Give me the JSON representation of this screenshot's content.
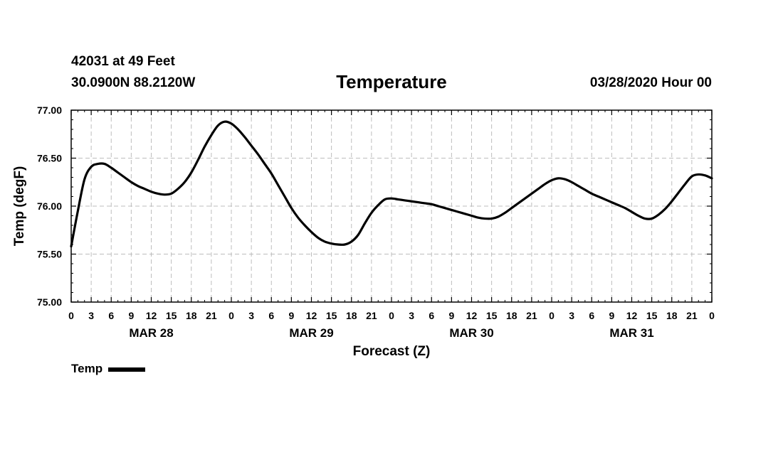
{
  "header": {
    "station": "42031 at 49 Feet",
    "coords": "30.0900N 88.2120W",
    "title": "Temperature",
    "datetime": "03/28/2020 Hour 00"
  },
  "chart_data": {
    "type": "line",
    "title": "Temperature",
    "xlabel": "Forecast (Z)",
    "ylabel": "Temp (degF)",
    "ylim": [
      75.0,
      77.0
    ],
    "yticks": [
      "75.00",
      "75.50",
      "76.00",
      "76.50",
      "77.00"
    ],
    "xlim": [
      0,
      96
    ],
    "xtick_hours": [
      0,
      3,
      6,
      9,
      12,
      15,
      18,
      21,
      24,
      27,
      30,
      33,
      36,
      39,
      42,
      45,
      48,
      51,
      54,
      57,
      60,
      63,
      66,
      69,
      72,
      75,
      78,
      81,
      84,
      87,
      90,
      93,
      96
    ],
    "xtick_labels": [
      "0",
      "3",
      "6",
      "9",
      "12",
      "15",
      "18",
      "21",
      "0",
      "3",
      "6",
      "9",
      "12",
      "15",
      "18",
      "21",
      "0",
      "3",
      "6",
      "9",
      "12",
      "15",
      "18",
      "21",
      "0",
      "3",
      "6",
      "9",
      "12",
      "15",
      "18",
      "21",
      "0"
    ],
    "day_labels": [
      {
        "label": "MAR 28",
        "hour": 12
      },
      {
        "label": "MAR 29",
        "hour": 36
      },
      {
        "label": "MAR 30",
        "hour": 60
      },
      {
        "label": "MAR 31",
        "hour": 84
      }
    ],
    "grid": true,
    "legend": "bottom-left",
    "series": [
      {
        "name": "Temp",
        "color": "#000000",
        "x": [
          0,
          1,
          2,
          3,
          4,
          5,
          6,
          7,
          8,
          9,
          10,
          11,
          12,
          13,
          14,
          15,
          16,
          17,
          18,
          19,
          20,
          21,
          22,
          23,
          24,
          25,
          26,
          27,
          28,
          29,
          30,
          31,
          32,
          33,
          34,
          35,
          36,
          37,
          38,
          39,
          40,
          41,
          42,
          43,
          44,
          45,
          46,
          47,
          48,
          49,
          50,
          51,
          52,
          53,
          54,
          55,
          56,
          57,
          58,
          59,
          60,
          61,
          62,
          63,
          64,
          65,
          66,
          67,
          68,
          69,
          70,
          71,
          72,
          73,
          74,
          75,
          76,
          77,
          78,
          79,
          80,
          81,
          82,
          83,
          84,
          85,
          86,
          87,
          88,
          89,
          90,
          91,
          92,
          93,
          94,
          95,
          96
        ],
        "y": [
          75.58,
          75.95,
          76.28,
          76.41,
          76.44,
          76.44,
          76.4,
          76.35,
          76.3,
          76.25,
          76.21,
          76.18,
          76.15,
          76.13,
          76.12,
          76.13,
          76.18,
          76.25,
          76.35,
          76.48,
          76.62,
          76.74,
          76.84,
          76.88,
          76.86,
          76.8,
          76.72,
          76.63,
          76.54,
          76.44,
          76.34,
          76.22,
          76.1,
          75.98,
          75.88,
          75.8,
          75.73,
          75.67,
          75.63,
          75.61,
          75.6,
          75.6,
          75.63,
          75.7,
          75.82,
          75.93,
          76.01,
          76.07,
          76.08,
          76.07,
          76.06,
          76.05,
          76.04,
          76.03,
          76.02,
          76.0,
          75.98,
          75.96,
          75.94,
          75.92,
          75.9,
          75.88,
          75.87,
          75.87,
          75.89,
          75.93,
          75.98,
          76.03,
          76.08,
          76.13,
          76.18,
          76.23,
          76.27,
          76.29,
          76.28,
          76.25,
          76.21,
          76.17,
          76.13,
          76.1,
          76.07,
          76.04,
          76.01,
          75.98,
          75.94,
          75.9,
          75.87,
          75.87,
          75.91,
          75.97,
          76.05,
          76.14,
          76.23,
          76.31,
          76.33,
          76.32,
          76.29
        ]
      }
    ]
  },
  "legend": {
    "label": "Temp"
  }
}
